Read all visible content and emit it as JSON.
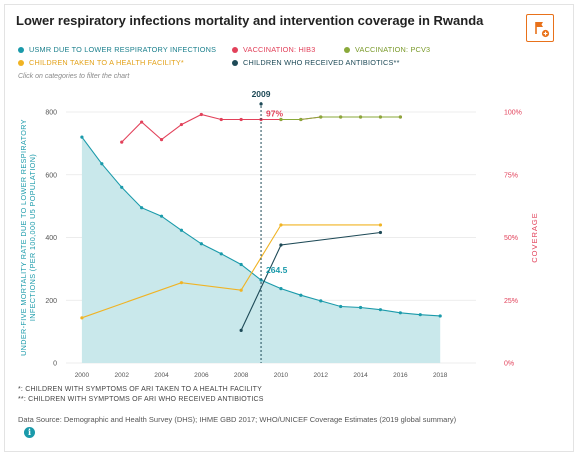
{
  "title": "Lower respiratory infections mortality and intervention coverage in Rwanda",
  "hint": "Click on categories to filter the chart",
  "footnotes": [
    "*: CHILDREN WITH SYMPTOMS OF ARI TAKEN TO A HEALTH FACILITY",
    "**: CHILDREN WITH SYMPTOMS OF ARI WHO RECEIVED ANTIBIOTICS"
  ],
  "source": "Data Source: Demographic and Health Survey (DHS); IHME GBD 2017; WHO/UNICEF Coverage Estimates (2019 global summary)",
  "icons": {
    "flag": "flag-add-icon",
    "info": "info-icon"
  },
  "colors": {
    "usmr": "#1a9aaa",
    "usmr_fill": "#c9e8eb",
    "hib3": "#e2415a",
    "pcv3": "#8aa93a",
    "health_facility": "#f0b323",
    "antibiotics": "#1e4a57",
    "grid": "#e6e6e6",
    "axis_left": "#1a9aaa",
    "axis_right": "#e2415a"
  },
  "chart_data": {
    "type": "line",
    "xlim": [
      1999.2,
      2019.8
    ],
    "x_ticks": [
      2000,
      2002,
      2004,
      2006,
      2008,
      2010,
      2012,
      2014,
      2016,
      2018
    ],
    "y_left": {
      "label": "UNDER-FIVE MORTALITY RATE DUE TO LOWER RESPIRATORY INFECTIONS (PER 100,000 U5 POPULATION)",
      "lim": [
        0,
        800
      ],
      "ticks": [
        0,
        200,
        400,
        600,
        800
      ]
    },
    "y_right": {
      "label": "COVERAGE",
      "lim": [
        0,
        100
      ],
      "ticks": [
        "0%",
        "25%",
        "50%",
        "75%",
        "100%"
      ],
      "tick_values": [
        0,
        25,
        50,
        75,
        100
      ]
    },
    "series": [
      {
        "name": "USMR DUE TO LOWER RESPIRATORY INFECTIONS",
        "axis": "left",
        "style": "area",
        "color_key": "usmr",
        "points": [
          [
            2000,
            720
          ],
          [
            2001,
            635
          ],
          [
            2002,
            560
          ],
          [
            2003,
            495
          ],
          [
            2004,
            468
          ],
          [
            2005,
            423
          ],
          [
            2006,
            380
          ],
          [
            2007,
            348
          ],
          [
            2008,
            314
          ],
          [
            2009,
            264.5
          ],
          [
            2010,
            237
          ],
          [
            2011,
            216
          ],
          [
            2012,
            198
          ],
          [
            2013,
            180
          ],
          [
            2014,
            177
          ],
          [
            2015,
            170
          ],
          [
            2016,
            160
          ],
          [
            2017,
            154
          ],
          [
            2018,
            150
          ]
        ]
      },
      {
        "name": "VACCINATION: HIB3",
        "axis": "right",
        "style": "line",
        "color_key": "hib3",
        "points": [
          [
            2002,
            88
          ],
          [
            2003,
            96
          ],
          [
            2004,
            89
          ],
          [
            2005,
            95
          ],
          [
            2006,
            99
          ],
          [
            2007,
            97
          ],
          [
            2008,
            97
          ],
          [
            2009,
            97
          ],
          [
            2010,
            97
          ],
          [
            2011,
            97
          ],
          [
            2012,
            98
          ],
          [
            2013,
            98
          ],
          [
            2014,
            98
          ],
          [
            2015,
            98
          ],
          [
            2016,
            98
          ]
        ]
      },
      {
        "name": "VACCINATION: PCV3",
        "axis": "right",
        "style": "line",
        "color_key": "pcv3",
        "points": [
          [
            2010,
            97
          ],
          [
            2011,
            97
          ],
          [
            2012,
            98
          ],
          [
            2013,
            98
          ],
          [
            2014,
            98
          ],
          [
            2015,
            98
          ],
          [
            2016,
            98
          ]
        ]
      },
      {
        "name": "CHILDREN TAKEN TO A HEALTH FACILITY*",
        "axis": "right",
        "style": "line",
        "color_key": "health_facility",
        "points": [
          [
            2000,
            18
          ],
          [
            2005,
            32
          ],
          [
            2008,
            29
          ],
          [
            2010,
            55
          ],
          [
            2015,
            55
          ]
        ]
      },
      {
        "name": "CHILDREN WHO RECEIVED ANTIBIOTICS**",
        "axis": "right",
        "style": "line",
        "color_key": "antibiotics",
        "points": [
          [
            2008,
            13
          ],
          [
            2010,
            47
          ],
          [
            2015,
            52
          ]
        ]
      }
    ],
    "highlight": {
      "year": 2009,
      "year_label": "2009",
      "usmr_label": "264.5",
      "hib3_label": "97%"
    }
  }
}
